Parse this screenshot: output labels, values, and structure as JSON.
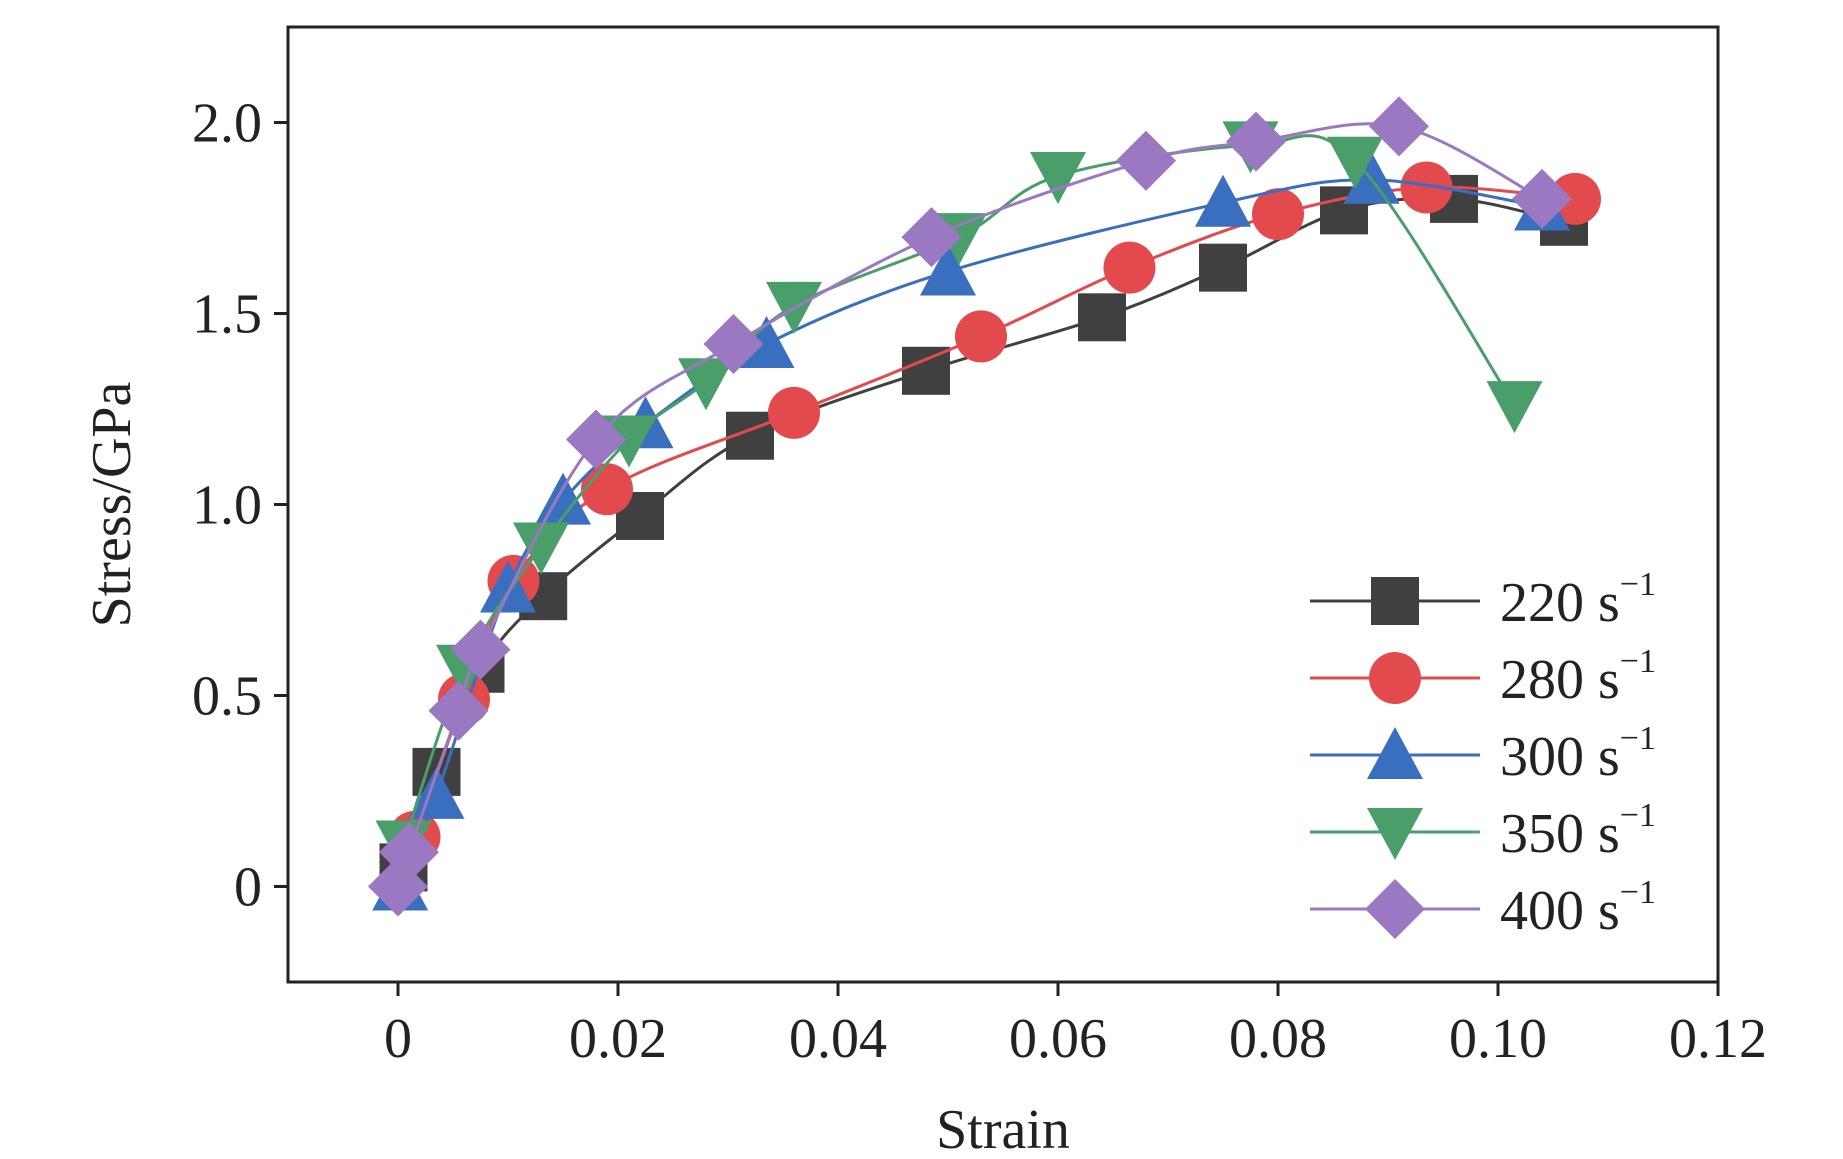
{
  "chart_data": {
    "type": "line",
    "title": "",
    "xlabel": "Strain",
    "ylabel": "Stress/GPa",
    "xlim": [
      -0.01,
      0.12
    ],
    "ylim": [
      -0.25,
      2.25
    ],
    "grid": false,
    "legend_position": "bottom-right",
    "x_ticks": [
      {
        "value": 0,
        "label": "0"
      },
      {
        "value": 0.02,
        "label": "0.02"
      },
      {
        "value": 0.04,
        "label": "0.04"
      },
      {
        "value": 0.06,
        "label": "0.06"
      },
      {
        "value": 0.08,
        "label": "0.08"
      },
      {
        "value": 0.1,
        "label": "0.10"
      },
      {
        "value": 0.12,
        "label": "0.12"
      }
    ],
    "y_ticks": [
      {
        "value": 0,
        "label": "0"
      },
      {
        "value": 0.5,
        "label": "0.5"
      },
      {
        "value": 1.0,
        "label": "1.0"
      },
      {
        "value": 1.5,
        "label": "1.5"
      },
      {
        "value": 2.0,
        "label": "2.0"
      }
    ],
    "series": [
      {
        "name": "220 s",
        "unit_sup": "−1",
        "color": "#404040",
        "marker": "square",
        "x": [
          0.0005,
          0.0035,
          0.0075,
          0.0132,
          0.022,
          0.032,
          0.048,
          0.064,
          0.075,
          0.086,
          0.096,
          0.106
        ],
        "y": [
          0.05,
          0.3,
          0.57,
          0.76,
          0.97,
          1.18,
          1.35,
          1.49,
          1.62,
          1.77,
          1.8,
          1.74
        ]
      },
      {
        "name": "280 s",
        "unit_sup": "−1",
        "color": "#E34A4E",
        "marker": "circle",
        "x": [
          0.0015,
          0.006,
          0.0105,
          0.019,
          0.036,
          0.053,
          0.0665,
          0.08,
          0.0935,
          0.107
        ],
        "y": [
          0.13,
          0.49,
          0.8,
          1.04,
          1.24,
          1.44,
          1.62,
          1.76,
          1.83,
          1.8
        ]
      },
      {
        "name": "300 s",
        "unit_sup": "−1",
        "color": "#3A6FBF",
        "marker": "triangle-up",
        "x": [
          0.0002,
          0.0035,
          0.01,
          0.015,
          0.0225,
          0.0335,
          0.05,
          0.075,
          0.0885,
          0.104
        ],
        "y": [
          0.0,
          0.24,
          0.78,
          1.01,
          1.21,
          1.42,
          1.61,
          1.79,
          1.85,
          1.78
        ]
      },
      {
        "name": "350 s",
        "unit_sup": "−1",
        "color": "#4A9E6A",
        "marker": "triangle-down",
        "x": [
          0.0005,
          0.006,
          0.013,
          0.021,
          0.028,
          0.036,
          0.051,
          0.06,
          0.0775,
          0.087,
          0.1015
        ],
        "y": [
          0.11,
          0.57,
          0.89,
          1.17,
          1.32,
          1.52,
          1.7,
          1.86,
          1.94,
          1.9,
          1.26
        ]
      },
      {
        "name": "400 s",
        "unit_sup": "−1",
        "color": "#9B78C2",
        "marker": "diamond",
        "x": [
          0.0,
          0.001,
          0.0055,
          0.0075,
          0.018,
          0.0305,
          0.0485,
          0.068,
          0.078,
          0.091,
          0.104
        ],
        "y": [
          0.0,
          0.09,
          0.46,
          0.62,
          1.17,
          1.42,
          1.7,
          1.9,
          1.95,
          1.99,
          1.8
        ]
      }
    ]
  }
}
